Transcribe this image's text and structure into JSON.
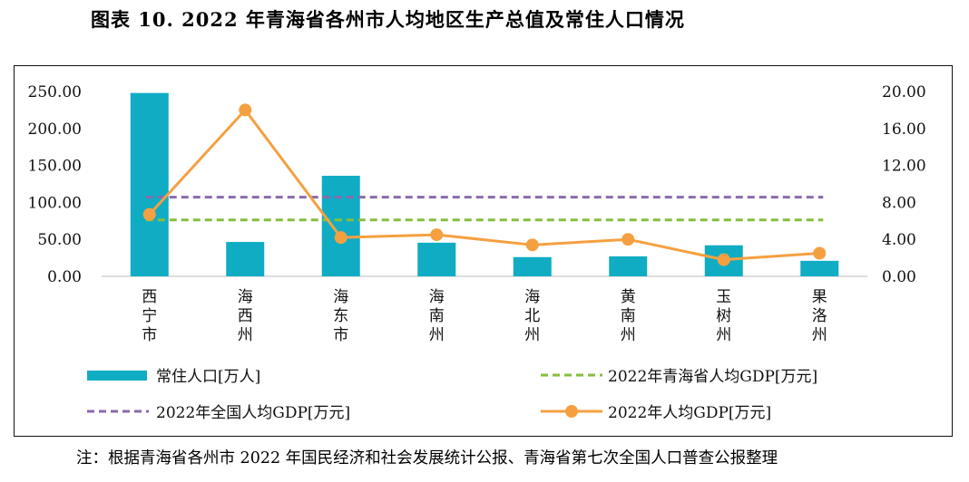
{
  "page": {
    "title": "图表 10. 2022 年青海省各州市人均地区生产总值及常住人口情况",
    "footnote": "注：根据青海省各州市 2022 年国民经济和社会发展统计公报、青海省第七次全国人口普查公报整理"
  },
  "chart_data": {
    "type": "bar+line",
    "categories": [
      "西宁市",
      "海西州",
      "海东市",
      "海南州",
      "海北州",
      "黄南州",
      "玉树州",
      "果洛州"
    ],
    "left_axis": {
      "ticks": [
        "250.00",
        "200.00",
        "150.00",
        "100.00",
        "50.00",
        "0.00"
      ],
      "ylim": [
        0,
        250
      ]
    },
    "right_axis": {
      "ticks": [
        "20.00",
        "16.00",
        "12.00",
        "8.00",
        "4.00",
        "0.00"
      ],
      "ylim": [
        0,
        20
      ]
    },
    "series": [
      {
        "name": "常住人口[万人]",
        "type": "bar",
        "axis": "left",
        "color": "#10acc4",
        "values": [
          248.0,
          46.5,
          136.0,
          45.5,
          26.0,
          27.0,
          42.0,
          21.0
        ]
      },
      {
        "name": "2022年青海省人均GDP[万元]",
        "type": "hline",
        "axis": "right",
        "color": "#86be3e",
        "value": 6.1
      },
      {
        "name": "2022年全国人均GDP[万元]",
        "type": "hline",
        "axis": "right",
        "color": "#8a6aad",
        "value": 8.57
      },
      {
        "name": "2022年人均GDP[万元]",
        "type": "line",
        "axis": "right",
        "color": "#f5a040",
        "values": [
          6.7,
          18.0,
          4.2,
          4.5,
          3.4,
          4.0,
          1.8,
          2.5
        ]
      }
    ],
    "legend": [
      "常住人口[万人]",
      "2022年青海省人均GDP[万元]",
      "2022年全国人均GDP[万元]",
      "2022年人均GDP[万元]"
    ]
  }
}
